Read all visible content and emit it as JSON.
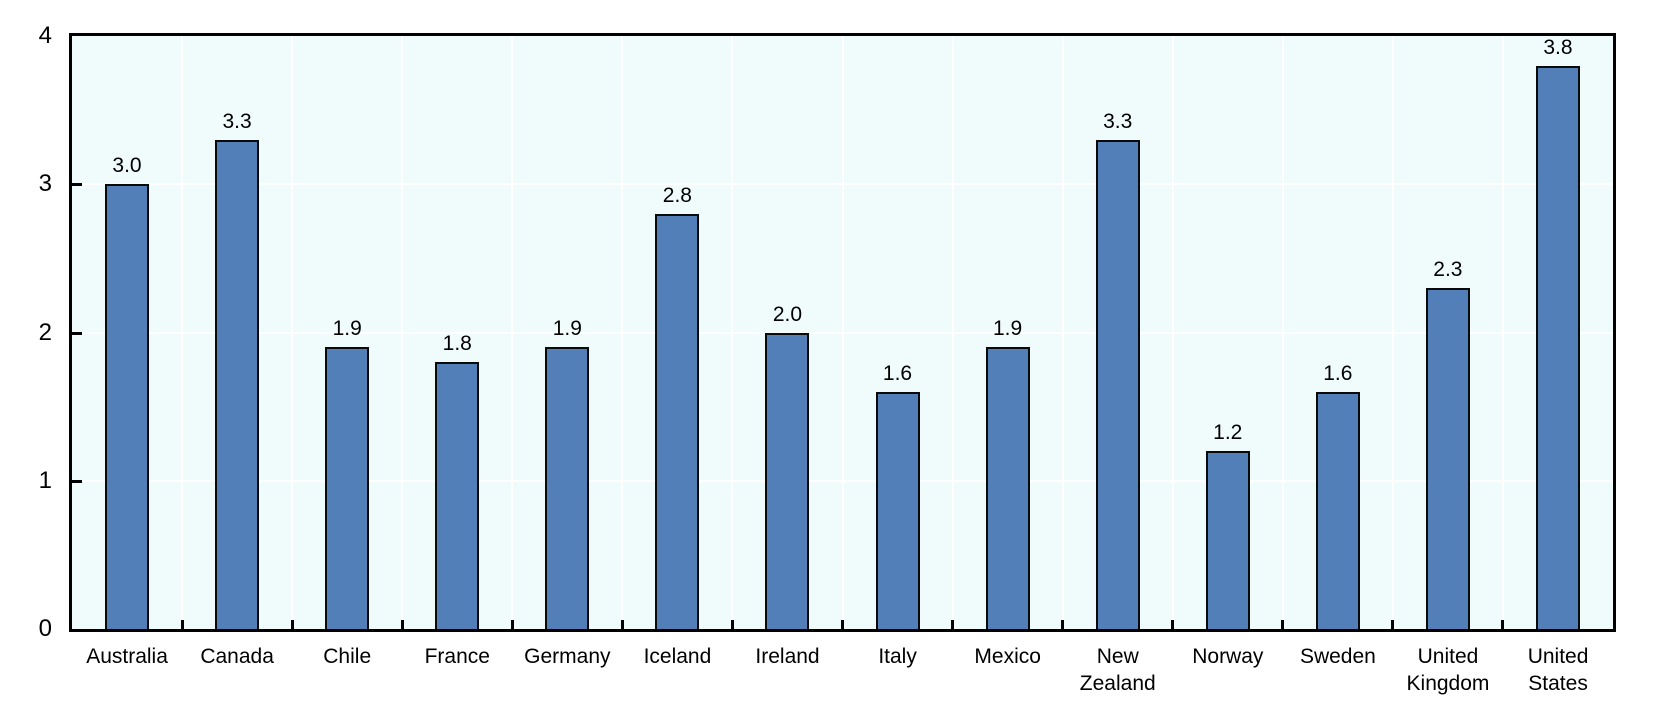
{
  "chart_data": {
    "type": "bar",
    "title": "",
    "xlabel": "",
    "ylabel": "",
    "categories": [
      "Australia",
      "Canada",
      "Chile",
      "France",
      "Germany",
      "Iceland",
      "Ireland",
      "Italy",
      "Mexico",
      "New Zealand",
      "Norway",
      "Sweden",
      "United Kingdom",
      "United States"
    ],
    "values": [
      3.0,
      3.3,
      1.9,
      1.8,
      1.9,
      2.8,
      2.0,
      1.6,
      1.9,
      3.3,
      1.2,
      1.6,
      2.3,
      3.8
    ],
    "value_labels": [
      "3.0",
      "3.3",
      "1.9",
      "1.8",
      "1.9",
      "2.8",
      "2.0",
      "1.6",
      "1.9",
      "3.3",
      "1.2",
      "1.6",
      "2.3",
      "3.8"
    ],
    "ylim": [
      0,
      4
    ],
    "y_ticks": [
      0,
      1,
      2,
      3,
      4
    ],
    "grid": true,
    "legend_position": "none",
    "colors": {
      "bar_fill": "#537fb9",
      "bar_border": "#0a0a0a",
      "plot_background": "#f0fbfc",
      "gridline": "#ffffff",
      "axis_frame": "#000000",
      "text": "#000000",
      "page_background": "#ffffff"
    }
  }
}
